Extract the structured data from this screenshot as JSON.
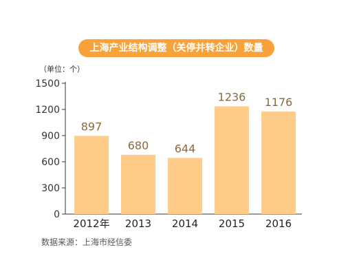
{
  "chart_data": {
    "type": "bar",
    "title": "上海产业结构调整（关停并转企业）数量",
    "unit_label": "（单位：个）",
    "categories": [
      "2012年",
      "2013",
      "2014",
      "2015",
      "2016"
    ],
    "values": [
      897,
      680,
      644,
      1236,
      1176
    ],
    "value_labels": [
      "897",
      "680",
      "644",
      "1236",
      "1176"
    ],
    "y_ticks": [
      0,
      300,
      600,
      900,
      1200,
      1500
    ],
    "ylim": [
      0,
      1500
    ],
    "xlabel": "",
    "ylabel": "",
    "grid": false,
    "legend": "none",
    "source": "数据来源：上海市经信委",
    "colors": {
      "bar": "#ffcc8a",
      "title_bg": "#f7a23b",
      "value_text": "#8a6a3c",
      "axis": "#333333"
    }
  }
}
